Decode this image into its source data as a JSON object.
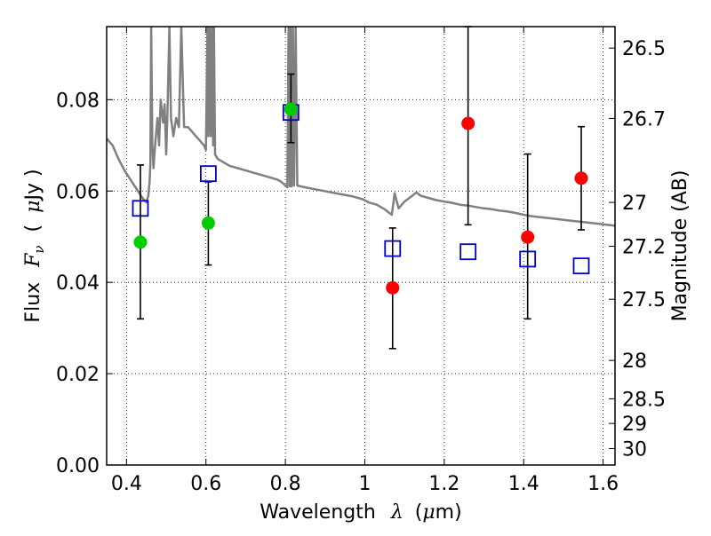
{
  "chart_data": {
    "type": "scatter",
    "xlabel": {
      "prefix": "Wavelength",
      "symbol": "λ",
      "unit_open": "(",
      "unit_mu": "μ",
      "unit_rest": "m)"
    },
    "ylabel": {
      "prefix": "Flux",
      "symbol": "F",
      "symbol_sub": "ν",
      "unit_open": "(",
      "unit_mu": "μ",
      "unit_rest": "Jy )"
    },
    "y2label": "Magnitude (AB)",
    "xlim": [
      0.35,
      1.63
    ],
    "ylim": [
      0.0,
      0.096
    ],
    "grid": true,
    "grid_style": "dotted",
    "x_ticks": [
      {
        "value": 0.4,
        "label": "0.4"
      },
      {
        "value": 0.6,
        "label": "0.6"
      },
      {
        "value": 0.8,
        "label": "0.8"
      },
      {
        "value": 1.0,
        "label": "1"
      },
      {
        "value": 1.2,
        "label": "1.2"
      },
      {
        "value": 1.4,
        "label": "1.4"
      },
      {
        "value": 1.6,
        "label": "1.6"
      }
    ],
    "y_ticks": [
      {
        "value": 0.0,
        "label": "0.00"
      },
      {
        "value": 0.02,
        "label": "0.02"
      },
      {
        "value": 0.04,
        "label": "0.04"
      },
      {
        "value": 0.06,
        "label": "0.06"
      },
      {
        "value": 0.08,
        "label": "0.08"
      }
    ],
    "y2_ticks": [
      {
        "label": "26.5",
        "flux": 0.0913
      },
      {
        "label": "26.7",
        "flux": 0.0759
      },
      {
        "label": "27",
        "flux": 0.0575
      },
      {
        "label": "27.2",
        "flux": 0.0479
      },
      {
        "label": "27.5",
        "flux": 0.0363
      },
      {
        "label": "28",
        "flux": 0.0229
      },
      {
        "label": "28.5",
        "flux": 0.0145
      },
      {
        "label": "29",
        "flux": 0.0091
      },
      {
        "label": "30",
        "flux": 0.0036
      }
    ],
    "series": [
      {
        "marker": "square-open",
        "color": "#0000cc",
        "points": [
          {
            "x": 0.435,
            "y": 0.0562
          },
          {
            "x": 0.606,
            "y": 0.0638
          },
          {
            "x": 0.814,
            "y": 0.0772
          },
          {
            "x": 1.07,
            "y": 0.0474
          },
          {
            "x": 1.26,
            "y": 0.0467
          },
          {
            "x": 1.41,
            "y": 0.0451
          },
          {
            "x": 1.545,
            "y": 0.0436
          }
        ]
      },
      {
        "marker": "circle-filled",
        "color": "#00cc00",
        "points": [
          {
            "x": 0.435,
            "y": 0.0488
          },
          {
            "x": 0.606,
            "y": 0.053
          },
          {
            "x": 0.814,
            "y": 0.0779
          }
        ]
      },
      {
        "marker": "circle-filled",
        "color": "#ff0000",
        "points": [
          {
            "x": 1.07,
            "y": 0.0388
          },
          {
            "x": 1.26,
            "y": 0.0748
          },
          {
            "x": 1.41,
            "y": 0.0499
          },
          {
            "x": 1.545,
            "y": 0.0628
          }
        ]
      }
    ],
    "error_bars": {
      "color": "#000000",
      "bars": [
        {
          "x": 0.435,
          "low": 0.032,
          "high": 0.0657
        },
        {
          "x": 0.606,
          "low": 0.0438,
          "high": 0.062
        },
        {
          "x": 0.814,
          "low": 0.0706,
          "high": 0.0856
        },
        {
          "x": 1.07,
          "low": 0.0255,
          "high": 0.0519
        },
        {
          "x": 1.26,
          "low": 0.0526,
          "high": 0.096
        },
        {
          "x": 1.41,
          "low": 0.032,
          "high": 0.0681
        },
        {
          "x": 1.545,
          "low": 0.0515,
          "high": 0.0741
        }
      ]
    },
    "spectrum": {
      "color": "#808080",
      "points": [
        [
          0.35,
          0.0715
        ],
        [
          0.365,
          0.07
        ],
        [
          0.38,
          0.067
        ],
        [
          0.395,
          0.0645
        ],
        [
          0.41,
          0.0625
        ],
        [
          0.425,
          0.0605
        ],
        [
          0.44,
          0.0585
        ],
        [
          0.45,
          0.0575
        ],
        [
          0.455,
          0.059
        ],
        [
          0.458,
          0.062
        ],
        [
          0.46,
          0.066
        ],
        [
          0.462,
          0.096
        ],
        [
          0.465,
          0.07
        ],
        [
          0.468,
          0.065
        ],
        [
          0.472,
          0.07
        ],
        [
          0.478,
          0.076
        ],
        [
          0.482,
          0.07
        ],
        [
          0.486,
          0.08
        ],
        [
          0.492,
          0.075
        ],
        [
          0.496,
          0.079
        ],
        [
          0.5,
          0.068
        ],
        [
          0.503,
          0.077
        ],
        [
          0.508,
          0.096
        ],
        [
          0.512,
          0.076
        ],
        [
          0.518,
          0.072
        ],
        [
          0.525,
          0.076
        ],
        [
          0.532,
          0.074
        ],
        [
          0.538,
          0.096
        ],
        [
          0.545,
          0.074
        ],
        [
          0.555,
          0.074
        ],
        [
          0.565,
          0.073
        ],
        [
          0.575,
          0.072
        ],
        [
          0.585,
          0.071
        ],
        [
          0.595,
          0.07
        ],
        [
          0.6,
          0.069
        ],
        [
          0.604,
          0.096
        ],
        [
          0.606,
          0.072
        ],
        [
          0.609,
          0.096
        ],
        [
          0.612,
          0.072
        ],
        [
          0.615,
          0.096
        ],
        [
          0.618,
          0.07
        ],
        [
          0.62,
          0.096
        ],
        [
          0.623,
          0.068
        ],
        [
          0.63,
          0.067
        ],
        [
          0.64,
          0.0665
        ],
        [
          0.65,
          0.066
        ],
        [
          0.66,
          0.0655
        ],
        [
          0.68,
          0.065
        ],
        [
          0.7,
          0.0645
        ],
        [
          0.72,
          0.064
        ],
        [
          0.74,
          0.0635
        ],
        [
          0.76,
          0.063
        ],
        [
          0.78,
          0.0625
        ],
        [
          0.79,
          0.062
        ],
        [
          0.8,
          0.0612
        ],
        [
          0.805,
          0.0608
        ],
        [
          0.808,
          0.096
        ],
        [
          0.811,
          0.061
        ],
        [
          0.813,
          0.096
        ],
        [
          0.816,
          0.061
        ],
        [
          0.819,
          0.096
        ],
        [
          0.822,
          0.0612
        ],
        [
          0.826,
          0.096
        ],
        [
          0.83,
          0.0612
        ],
        [
          0.85,
          0.0608
        ],
        [
          0.88,
          0.0603
        ],
        [
          0.91,
          0.0598
        ],
        [
          0.94,
          0.0593
        ],
        [
          0.97,
          0.0588
        ],
        [
          0.995,
          0.0582
        ],
        [
          1.01,
          0.0575
        ],
        [
          1.03,
          0.057
        ],
        [
          1.05,
          0.056
        ],
        [
          1.06,
          0.0553
        ],
        [
          1.068,
          0.0548
        ],
        [
          1.075,
          0.0595
        ],
        [
          1.085,
          0.0562
        ],
        [
          1.1,
          0.0577
        ],
        [
          1.12,
          0.059
        ],
        [
          1.13,
          0.0597
        ],
        [
          1.14,
          0.059
        ],
        [
          1.16,
          0.0585
        ],
        [
          1.18,
          0.058
        ],
        [
          1.2,
          0.0577
        ],
        [
          1.22,
          0.0574
        ],
        [
          1.24,
          0.057
        ],
        [
          1.26,
          0.0568
        ],
        [
          1.28,
          0.0565
        ],
        [
          1.3,
          0.0562
        ],
        [
          1.32,
          0.056
        ],
        [
          1.34,
          0.0557
        ],
        [
          1.36,
          0.0555
        ],
        [
          1.38,
          0.0552
        ],
        [
          1.4,
          0.0548
        ],
        [
          1.42,
          0.0545
        ],
        [
          1.44,
          0.0543
        ],
        [
          1.46,
          0.0541
        ],
        [
          1.48,
          0.0539
        ],
        [
          1.5,
          0.0537
        ],
        [
          1.52,
          0.0535
        ],
        [
          1.54,
          0.0533
        ],
        [
          1.56,
          0.0531
        ],
        [
          1.58,
          0.0529
        ],
        [
          1.6,
          0.0527
        ],
        [
          1.63,
          0.0524
        ]
      ]
    }
  }
}
